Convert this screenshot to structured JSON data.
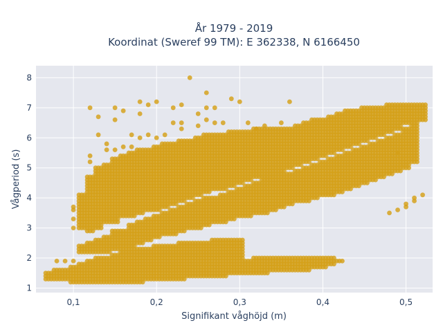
{
  "chart_data": {
    "type": "scatter",
    "title_line1": "År 1979 - 2019",
    "title_line2": "Koordinat (Sweref 99 TM): E 362338, N 6166450",
    "xlabel": "Signifikant våghöjd (m)",
    "ylabel": "Vågperiod (s)",
    "xlim": [
      0.055,
      0.532
    ],
    "ylim": [
      0.85,
      8.4
    ],
    "xticks": [
      0.1,
      0.2,
      0.3,
      0.4,
      0.5
    ],
    "xtick_labels": [
      "0,1",
      "0,2",
      "0,3",
      "0,4",
      "0,5"
    ],
    "yticks": [
      1,
      2,
      3,
      4,
      5,
      6,
      7,
      8
    ],
    "ytick_labels": [
      "1",
      "2",
      "3",
      "4",
      "5",
      "6",
      "7",
      "8"
    ],
    "grid": true,
    "marker_color": "#d4a017",
    "plot_bg": "#e5e7ee",
    "x_step": 0.01,
    "columns": [
      {
        "x": 0.07,
        "low": [
          1.3,
          1.5
        ]
      },
      {
        "x": 0.08,
        "low": [
          1.3,
          1.6
        ],
        "extra": [
          1.9
        ]
      },
      {
        "x": 0.09,
        "low": [
          1.3,
          1.6
        ],
        "extra": [
          1.9
        ]
      },
      {
        "x": 0.1,
        "low": [
          1.2,
          1.7
        ],
        "extra": [
          1.9,
          3.0,
          3.3,
          3.6,
          3.7
        ]
      },
      {
        "x": 0.11,
        "low": [
          1.2,
          1.8
        ],
        "mid": [
          2.2,
          2.4
        ],
        "high": [
          3.0,
          4.1
        ]
      },
      {
        "x": 0.12,
        "low": [
          1.2,
          1.9
        ],
        "mid": [
          2.2,
          2.5
        ],
        "high": [
          2.9,
          4.7
        ],
        "extra": [
          5.2,
          5.4,
          7.0
        ]
      },
      {
        "x": 0.13,
        "low": [
          1.2,
          2.0
        ],
        "mid": [
          2.2,
          2.6
        ],
        "high": [
          3.0,
          5.0
        ],
        "extra": [
          6.1,
          6.7
        ]
      },
      {
        "x": 0.14,
        "low": [
          1.2,
          2.0
        ],
        "mid": [
          2.2,
          2.7
        ],
        "high": [
          3.2,
          5.1
        ],
        "extra": [
          5.6,
          5.8
        ]
      },
      {
        "x": 0.15,
        "low": [
          1.2,
          2.1
        ],
        "mid": [
          2.3,
          2.9
        ],
        "high": [
          3.2,
          5.3
        ],
        "extra": [
          5.6,
          6.6,
          7.0
        ]
      },
      {
        "x": 0.16,
        "low": [
          1.2,
          2.2
        ],
        "mid": [
          2.3,
          2.9
        ],
        "high": [
          3.4,
          5.4
        ],
        "extra": [
          5.7,
          6.9
        ]
      },
      {
        "x": 0.17,
        "low": [
          1.2,
          2.3
        ],
        "mid": [
          2.4,
          3.1
        ],
        "high": [
          3.4,
          5.5
        ],
        "extra": [
          5.7,
          6.1
        ]
      },
      {
        "x": 0.18,
        "low": [
          1.2,
          2.3
        ],
        "mid": [
          2.5,
          3.2
        ],
        "high": [
          3.5,
          5.6
        ],
        "extra": [
          6.0,
          6.8,
          7.2
        ]
      },
      {
        "x": 0.19,
        "low": [
          1.3,
          2.3
        ],
        "mid": [
          2.6,
          3.3
        ],
        "high": [
          3.6,
          5.6
        ],
        "extra": [
          6.1,
          7.1
        ]
      },
      {
        "x": 0.2,
        "low": [
          1.3,
          2.4
        ],
        "mid": [
          2.7,
          3.4
        ],
        "high": [
          3.6,
          5.7
        ],
        "extra": [
          6.0,
          7.2
        ]
      },
      {
        "x": 0.21,
        "low": [
          1.3,
          2.4
        ],
        "mid": [
          2.8,
          3.5
        ],
        "high": [
          3.7,
          5.8
        ],
        "extra": [
          6.1
        ]
      },
      {
        "x": 0.22,
        "low": [
          1.3,
          2.4
        ],
        "mid": [
          2.8,
          3.6
        ],
        "high": [
          3.8,
          5.8
        ],
        "extra": [
          6.5,
          7.0
        ]
      },
      {
        "x": 0.23,
        "low": [
          1.3,
          2.5
        ],
        "mid": [
          2.9,
          3.7
        ],
        "high": [
          3.9,
          5.9
        ],
        "extra": [
          6.3,
          6.5,
          7.1
        ]
      },
      {
        "x": 0.24,
        "low": [
          1.4,
          2.5
        ],
        "mid": [
          3.0,
          3.8
        ],
        "high": [
          4.0,
          5.9
        ],
        "extra": [
          8.0
        ]
      },
      {
        "x": 0.25,
        "low": [
          1.4,
          2.5
        ],
        "mid": [
          3.0,
          3.9
        ],
        "high": [
          4.1,
          6.0
        ],
        "extra": [
          6.4,
          6.8
        ]
      },
      {
        "x": 0.26,
        "low": [
          1.4,
          2.5
        ],
        "mid": [
          3.1,
          4.0
        ],
        "high": [
          4.2,
          6.1
        ],
        "extra": [
          6.6,
          7.0,
          7.5
        ]
      },
      {
        "x": 0.27,
        "low": [
          1.4,
          2.6
        ],
        "mid": [
          3.2,
          4.0
        ],
        "high": [
          4.3,
          6.1
        ],
        "extra": [
          6.5,
          7.0
        ]
      },
      {
        "x": 0.28,
        "low": [
          1.4,
          2.6
        ],
        "mid": [
          3.2,
          4.1
        ],
        "high": [
          4.3,
          6.1
        ],
        "extra": [
          6.5
        ]
      },
      {
        "x": 0.29,
        "low": [
          1.5,
          2.6
        ],
        "mid": [
          3.3,
          4.2
        ],
        "high": [
          4.4,
          6.2
        ],
        "extra": [
          7.3
        ]
      },
      {
        "x": 0.3,
        "low": [
          1.5,
          2.6
        ],
        "mid": [
          3.4,
          4.3
        ],
        "high": [
          4.5,
          6.2
        ],
        "extra": [
          7.2
        ]
      },
      {
        "x": 0.31,
        "low": [
          1.5,
          1.9
        ],
        "mid": [
          3.4,
          4.4
        ],
        "high": [
          4.6,
          6.2
        ],
        "extra": [
          6.5
        ]
      },
      {
        "x": 0.32,
        "low": [
          1.5,
          2.0
        ],
        "mid": [
          3.5,
          4.5
        ],
        "high": [
          4.7,
          6.3
        ],
        "extra": [
          6.3
        ]
      },
      {
        "x": 0.33,
        "low": [
          1.5,
          2.0
        ],
        "mid": [
          3.5,
          4.6
        ],
        "high": [
          4.7,
          6.3
        ],
        "extra": [
          6.4
        ]
      },
      {
        "x": 0.34,
        "low": [
          1.6,
          2.0
        ],
        "mid": [
          3.6,
          4.7
        ],
        "high": [
          4.8,
          6.3
        ]
      },
      {
        "x": 0.35,
        "low": [
          1.6,
          2.0
        ],
        "mid": [
          3.7,
          4.8
        ],
        "high": [
          4.9,
          6.3
        ],
        "extra": [
          6.5
        ]
      },
      {
        "x": 0.36,
        "low": [
          1.6,
          2.0
        ],
        "mid": [
          3.8,
          4.8
        ],
        "high": [
          5.0,
          6.3
        ],
        "extra": [
          7.2
        ]
      },
      {
        "x": 0.37,
        "low": [
          1.6,
          2.0
        ],
        "mid": [
          3.9,
          4.9
        ],
        "high": [
          5.1,
          6.4
        ]
      },
      {
        "x": 0.38,
        "low": [
          1.6,
          2.0
        ],
        "mid": [
          3.9,
          5.0
        ],
        "high": [
          5.2,
          6.5
        ]
      },
      {
        "x": 0.39,
        "low": [
          1.7,
          2.0
        ],
        "mid": [
          4.0,
          5.1
        ],
        "high": [
          5.3,
          6.6
        ]
      },
      {
        "x": 0.4,
        "low": [
          1.7,
          2.0
        ],
        "mid": [
          4.1,
          5.2
        ],
        "high": [
          5.4,
          6.6
        ]
      },
      {
        "x": 0.41,
        "low": [
          1.8,
          2.0
        ],
        "mid": [
          4.1,
          5.3
        ],
        "high": [
          5.5,
          6.7
        ]
      },
      {
        "x": 0.42,
        "low": [
          1.9,
          1.9
        ],
        "mid": [
          4.2,
          5.4
        ],
        "high": [
          5.6,
          6.8
        ]
      },
      {
        "x": 0.43,
        "mid": [
          4.3,
          5.5
        ],
        "high": [
          5.7,
          6.9
        ]
      },
      {
        "x": 0.44,
        "mid": [
          4.4,
          5.6
        ],
        "high": [
          5.8,
          6.9
        ]
      },
      {
        "x": 0.45,
        "mid": [
          4.5,
          5.7
        ],
        "high": [
          5.9,
          7.0
        ]
      },
      {
        "x": 0.46,
        "mid": [
          4.6,
          5.8
        ],
        "high": [
          6.0,
          7.0
        ]
      },
      {
        "x": 0.47,
        "mid": [
          4.7,
          5.9
        ],
        "high": [
          6.1,
          7.0
        ]
      },
      {
        "x": 0.48,
        "mid": [
          4.8,
          6.0
        ],
        "high": [
          6.2,
          7.1
        ],
        "extra": [
          3.5
        ]
      },
      {
        "x": 0.49,
        "mid": [
          4.9,
          6.1
        ],
        "high": [
          6.3,
          7.1
        ],
        "extra": [
          3.6,
          5.5
        ]
      },
      {
        "x": 0.5,
        "mid": [
          5.0,
          6.3
        ],
        "high": [
          6.5,
          7.1
        ],
        "extra": [
          3.7,
          3.8
        ]
      },
      {
        "x": 0.51,
        "mid": [
          5.2,
          6.5
        ],
        "high": [
          6.6,
          7.1
        ],
        "extra": [
          3.9,
          4.0
        ]
      },
      {
        "x": 0.52,
        "mid": [
          6.6,
          6.9
        ],
        "high": [
          7.0,
          7.1
        ],
        "extra": [
          4.1
        ]
      }
    ]
  }
}
